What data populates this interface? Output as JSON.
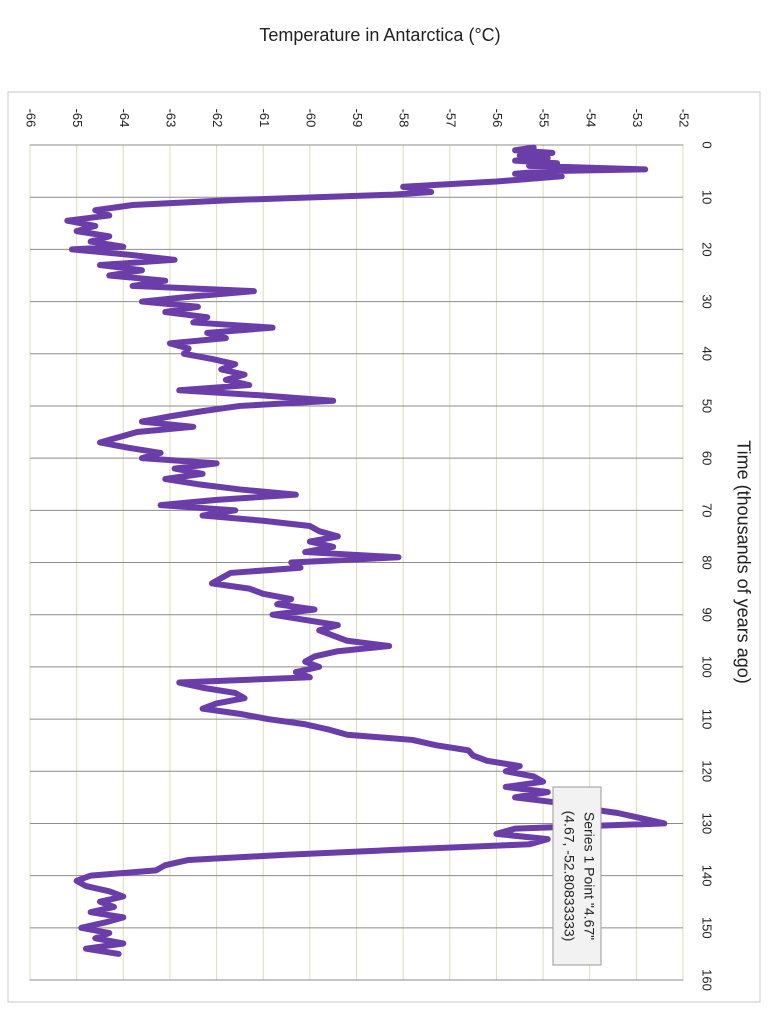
{
  "chart_data": {
    "type": "line",
    "title": "Temperature in Antarctica (°C)",
    "xlabel": "Time (thousands of years ago)",
    "x": [
      0.5,
      1,
      1.5,
      2,
      2.5,
      3,
      3.5,
      4,
      4.67,
      5,
      5.5,
      6,
      6.5,
      7,
      8,
      9,
      9.5,
      10.5,
      11.5,
      12.5,
      13.5,
      14.5,
      15.5,
      16.5,
      17.5,
      18.5,
      19.5,
      20,
      21,
      22,
      23,
      24,
      25,
      26,
      27,
      28,
      29,
      30,
      31,
      32,
      33,
      34,
      35,
      36,
      37,
      38,
      39,
      40,
      41,
      42,
      43,
      44,
      45,
      46,
      47,
      48,
      49,
      50,
      51,
      52,
      53,
      54,
      55,
      56,
      57,
      58,
      59,
      60,
      61,
      62,
      63,
      64,
      65,
      66,
      67,
      68,
      69,
      70,
      71,
      72,
      73,
      74,
      75,
      76,
      77,
      78,
      79,
      80,
      81,
      82,
      83,
      84,
      85,
      86,
      87,
      88,
      89,
      90,
      91,
      92,
      93,
      94,
      95,
      96,
      97,
      98,
      99,
      100,
      101,
      102,
      103,
      104,
      105,
      106,
      107,
      108,
      109,
      110,
      111,
      112,
      113,
      114,
      115,
      116,
      117,
      118,
      119,
      120,
      121,
      122,
      123,
      124,
      125,
      126,
      127,
      128,
      129,
      130,
      131,
      132,
      133,
      134,
      135,
      136,
      137,
      138,
      139,
      140,
      141,
      142,
      143,
      144,
      145,
      146,
      147,
      148,
      149,
      150,
      151,
      152,
      153,
      154,
      155
    ],
    "series": [
      {
        "name": "Series 1",
        "color": "#6a3da8",
        "values": [
          -55.2,
          -55.6,
          -54.8,
          -55.5,
          -54.9,
          -55.6,
          -54.7,
          -55.3,
          -52.81,
          -54.9,
          -55.6,
          -54.6,
          -55.3,
          -56.0,
          -58.0,
          -57.4,
          -58.2,
          -61.5,
          -63.8,
          -64.6,
          -64.3,
          -65.2,
          -64.6,
          -65.0,
          -64.3,
          -64.7,
          -64.0,
          -65.1,
          -63.9,
          -62.9,
          -64.5,
          -63.6,
          -64.3,
          -63.1,
          -63.8,
          -61.2,
          -62.5,
          -63.6,
          -62.4,
          -63.1,
          -62.2,
          -62.5,
          -60.8,
          -62.2,
          -61.8,
          -63.0,
          -62.6,
          -62.7,
          -62.1,
          -61.6,
          -61.9,
          -61.4,
          -61.8,
          -61.3,
          -62.8,
          -61.0,
          -59.5,
          -61.5,
          -62.3,
          -63.0,
          -63.6,
          -62.5,
          -63.7,
          -64.1,
          -64.5,
          -63.9,
          -63.2,
          -63.6,
          -62.0,
          -62.9,
          -62.3,
          -63.1,
          -62.4,
          -61.5,
          -60.3,
          -62.0,
          -63.2,
          -61.6,
          -62.3,
          -61.0,
          -60.0,
          -59.8,
          -59.4,
          -60.0,
          -59.5,
          -60.1,
          -58.1,
          -60.4,
          -60.2,
          -61.7,
          -61.9,
          -62.1,
          -61.3,
          -61.0,
          -60.4,
          -60.7,
          -59.9,
          -60.8,
          -60.1,
          -59.4,
          -59.8,
          -59.5,
          -59.2,
          -58.3,
          -59.4,
          -59.9,
          -60.1,
          -59.8,
          -60.3,
          -60.0,
          -62.8,
          -62.3,
          -61.6,
          -61.4,
          -62.0,
          -62.3,
          -61.5,
          -60.9,
          -60.1,
          -59.6,
          -59.2,
          -57.8,
          -57.3,
          -56.6,
          -56.5,
          -56.2,
          -55.5,
          -55.8,
          -55.2,
          -55.0,
          -55.8,
          -54.9,
          -55.6,
          -54.7,
          -54.2,
          -53.4,
          -52.9,
          -52.4,
          -55.6,
          -56.0,
          -54.9,
          -55.3,
          -58.0,
          -60.5,
          -62.6,
          -63.1,
          -63.3,
          -64.7,
          -65.0,
          -64.8,
          -64.3,
          -64.0,
          -64.5,
          -64.2,
          -64.7,
          -64.0,
          -64.4,
          -64.9,
          -64.3,
          -64.6,
          -64.0,
          -64.8,
          -64.1
        ]
      }
    ],
    "xlim": [
      0,
      160
    ],
    "xticks": [
      0,
      10,
      20,
      30,
      40,
      50,
      60,
      70,
      80,
      90,
      100,
      110,
      120,
      130,
      140,
      150,
      160
    ],
    "ylim": [
      -66,
      -52
    ],
    "yticks": [
      -66,
      -65,
      -64,
      -63,
      -62,
      -61,
      -60,
      -59,
      -58,
      -57,
      -56,
      -55,
      -54,
      -53,
      -52
    ],
    "grid": true,
    "annotations": [
      "Series 1 Point \"4.67\"",
      "(4.67, -52.80833333)"
    ]
  }
}
